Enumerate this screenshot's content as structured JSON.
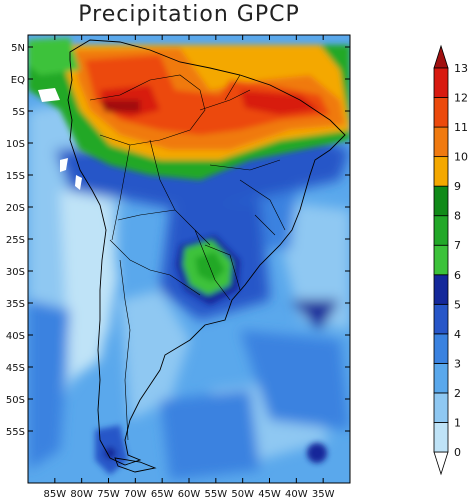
{
  "title": "Precipitation GPCP",
  "map": {
    "lon_range": [
      -90,
      -30
    ],
    "lat_range": [
      -60,
      10
    ],
    "lon_ticks": [
      "85W",
      "80W",
      "75W",
      "70W",
      "65W",
      "60W",
      "55W",
      "50W",
      "45W",
      "40W",
      "35W"
    ],
    "lat_ticks": [
      "5N",
      "EQ",
      "5S",
      "10S",
      "15S",
      "20S",
      "25S",
      "30S",
      "35S",
      "40S",
      "45S",
      "50S",
      "55S"
    ]
  },
  "colorbar": {
    "levels": [
      "0",
      "1",
      "2",
      "3",
      "4",
      "5",
      "6",
      "7",
      "8",
      "9",
      "10",
      "11",
      "12",
      "13"
    ],
    "colors": [
      "#ffffff",
      "#bfe3f7",
      "#8fc8f2",
      "#5aa8ec",
      "#3a82e0",
      "#2756c8",
      "#14289a",
      "#3cc23a",
      "#22a828",
      "#108a18",
      "#f4a800",
      "#f07a10",
      "#ec4a0c",
      "#d81a10",
      "#a01010"
    ]
  }
}
